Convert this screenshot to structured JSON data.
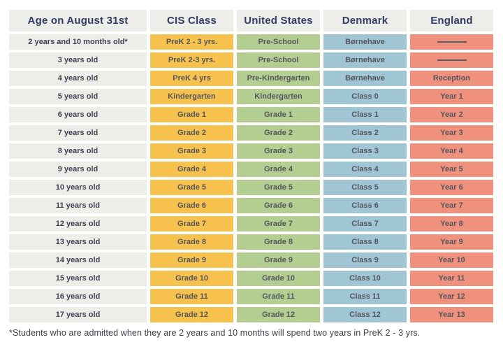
{
  "table": {
    "headers": [
      "Age on August 31st",
      "CIS Class",
      "United States",
      "Denmark",
      "England"
    ],
    "dash_token": "———",
    "rows": [
      [
        "2 years and 10 months old*",
        "PreK 2 - 3 yrs.",
        "Pre-School",
        "Børnehave",
        "———"
      ],
      [
        "3 years old",
        "PreK 2-3 yrs.",
        "Pre-School",
        "Børnehave",
        "———"
      ],
      [
        "4 years old",
        "PreK 4 yrs",
        "Pre-Kindergarten",
        "Børnehave",
        "Reception"
      ],
      [
        "5 years old",
        "Kindergarten",
        "Kindergarten",
        "Class 0",
        "Year 1"
      ],
      [
        "6 years old",
        "Grade 1",
        "Grade 1",
        "Class 1",
        "Year 2"
      ],
      [
        "7 years old",
        "Grade 2",
        "Grade 2",
        "Class 2",
        "Year 3"
      ],
      [
        "8 years old",
        "Grade 3",
        "Grade 3",
        "Class 3",
        "Year 4"
      ],
      [
        "9 years old",
        "Grade 4",
        "Grade 4",
        "Class 4",
        "Year 5"
      ],
      [
        "10 years old",
        "Grade 5",
        "Grade 5",
        "Class 5",
        "Year 6"
      ],
      [
        "11 years old",
        "Grade 6",
        "Grade 6",
        "Class 6",
        "Year 7"
      ],
      [
        "12 years old",
        "Grade 7",
        "Grade 7",
        "Class 7",
        "Year 8"
      ],
      [
        "13 years old",
        "Grade 8",
        "Grade 8",
        "Class 8",
        "Year 9"
      ],
      [
        "14 years old",
        "Grade 9",
        "Grade 9",
        "Class 9",
        "Year 10"
      ],
      [
        "15 years old",
        "Grade 10",
        "Grade 10",
        "Class 10",
        "Year 11"
      ],
      [
        "16 years old",
        "Grade 11",
        "Grade 11",
        "Class 11",
        "Year 12"
      ],
      [
        "17 years old",
        "Grade 12",
        "Grade 12",
        "Class 12",
        "Year 13"
      ]
    ]
  },
  "footnote": "*Students who are admitted when they are 2 years and 10 months will spend two years in PreK 2 - 3 yrs.",
  "colors": {
    "header_bg": "#EDEDEA",
    "header_text": "#333B67",
    "age_column_bg": "#EEEEE9",
    "age_text": "#3D4154",
    "cis_class_bg": "#F6C14D",
    "united_states_bg": "#B4CE92",
    "denmark_bg": "#A0C5D4",
    "england_bg": "#F0917E",
    "cell_text": "#54565E",
    "dash": "#5B5D66",
    "page_bg": "#FFFFFF"
  }
}
